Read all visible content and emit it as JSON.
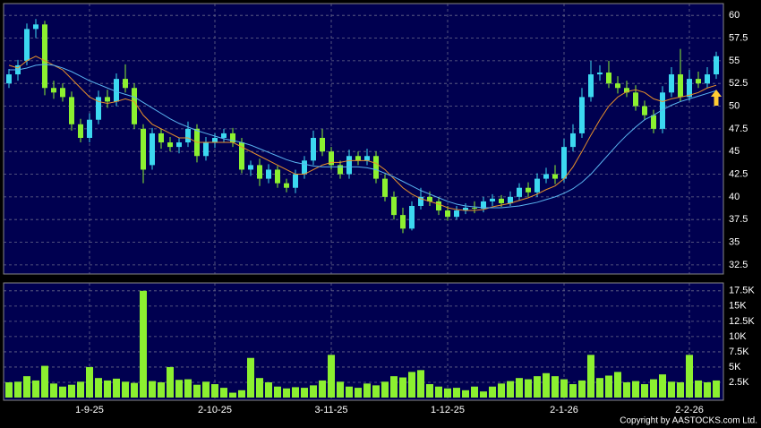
{
  "chart_data": [
    {
      "type": "candlestick",
      "categories": [
        null,
        null,
        null,
        null,
        null,
        null,
        null,
        null,
        null,
        "1-9-25",
        null,
        null,
        null,
        null,
        null,
        null,
        null,
        null,
        null,
        null,
        null,
        null,
        null,
        "2-10-25",
        null,
        null,
        null,
        null,
        null,
        null,
        null,
        null,
        null,
        null,
        null,
        null,
        "3-11-25",
        null,
        null,
        null,
        null,
        null,
        null,
        null,
        null,
        null,
        null,
        null,
        null,
        "1-12-25",
        null,
        null,
        null,
        null,
        null,
        null,
        null,
        null,
        null,
        null,
        null,
        null,
        "2-1-26",
        null,
        null,
        null,
        null,
        null,
        null,
        null,
        null,
        null,
        null,
        null,
        null,
        null,
        "2-2-26",
        null,
        null,
        null
      ],
      "open": [
        52.5,
        53.5,
        55,
        58.5,
        59,
        52,
        52,
        51,
        48,
        46.5,
        48.5,
        51,
        50.5,
        53,
        52,
        47.5,
        43.5,
        47,
        46,
        45.5,
        46,
        47.5,
        44.5,
        46,
        46.5,
        47,
        46,
        43,
        43.5,
        42,
        43,
        41.5,
        41,
        42.5,
        44,
        46.5,
        45,
        43.5,
        42.5,
        44.5,
        44,
        44.5,
        42,
        40,
        38,
        36.5,
        39,
        40,
        39.5,
        38.5,
        37.8,
        38.5,
        38.8,
        38.7,
        39.5,
        39.8,
        39.3,
        40,
        41,
        40.5,
        42,
        42.5,
        42,
        45.5,
        47,
        51,
        53.5,
        53.7,
        52.5,
        52,
        51.5,
        50,
        49,
        47.5,
        51.5,
        53.5,
        51,
        53,
        52.5,
        53.5
      ],
      "high": [
        54.1,
        55.1,
        59.1,
        59.6,
        59.4,
        52.8,
        52.5,
        51.6,
        48.6,
        49.2,
        51.7,
        51.8,
        53.6,
        54.6,
        52.5,
        48,
        47.6,
        47.5,
        46.6,
        46.5,
        48.3,
        48,
        46.6,
        47,
        47.5,
        47.6,
        46.5,
        44,
        44.2,
        43.6,
        43.4,
        42,
        43,
        44.5,
        47.3,
        47.5,
        45.5,
        44,
        45.2,
        45,
        45.3,
        45,
        42.5,
        40.6,
        38.8,
        39.5,
        41,
        40.6,
        40,
        39,
        39,
        39.3,
        39.5,
        40,
        40.3,
        40.2,
        40.6,
        41.5,
        41.6,
        42.6,
        43.2,
        43.5,
        46.4,
        48,
        52,
        55,
        54.5,
        55,
        53.3,
        52.8,
        52.3,
        50.6,
        49.6,
        52.2,
        54.3,
        56.3,
        54,
        53.8,
        54.3,
        56
      ],
      "low": [
        52,
        52.8,
        54.5,
        57.5,
        51.2,
        50.8,
        50.5,
        47.3,
        46,
        46,
        48,
        49.8,
        50,
        51.5,
        47.5,
        41.5,
        43,
        45.3,
        45,
        44.8,
        45.5,
        43.8,
        44,
        45.4,
        46,
        45.5,
        42.6,
        42.3,
        41.2,
        41.5,
        41,
        40.5,
        40.4,
        42,
        43.5,
        44.5,
        43,
        42,
        42,
        43.5,
        43.5,
        41.5,
        39.5,
        37.5,
        36,
        36.3,
        38.6,
        39,
        38,
        37.4,
        37.5,
        38.1,
        38.2,
        38.3,
        39,
        38.9,
        39,
        39.6,
        40,
        40,
        41.5,
        41.4,
        41.6,
        45,
        46.5,
        50.5,
        52.8,
        52,
        51.4,
        51,
        49.5,
        48.5,
        47,
        47,
        51,
        50.5,
        50.6,
        52,
        52,
        53
      ],
      "close": [
        53.5,
        54.5,
        58.5,
        59,
        52,
        51.5,
        51,
        48,
        46.5,
        48.5,
        51,
        50.5,
        53,
        52,
        48,
        43,
        47,
        46,
        45.5,
        46,
        47.5,
        44.5,
        46,
        46.5,
        47,
        46,
        43,
        43.5,
        42,
        43,
        41.5,
        41,
        42.5,
        44,
        46.5,
        45,
        43.5,
        42.5,
        44.5,
        44,
        44.5,
        42,
        40,
        38,
        36.5,
        39,
        40,
        39.5,
        38.5,
        37.8,
        38.5,
        38.8,
        38.7,
        39.5,
        39.8,
        39.3,
        40,
        41,
        40.5,
        42,
        42.5,
        42,
        45.5,
        47,
        51,
        53.5,
        53.7,
        52.5,
        52,
        51.5,
        50,
        49,
        47.5,
        51.5,
        53.5,
        51,
        53,
        52.5,
        53.5,
        55.5
      ],
      "up_color": "#3cd8f0",
      "down_color": "#8cf030",
      "series": [
        {
          "color": "#e8902a",
          "values": [
            54.5,
            54.2,
            55,
            55.5,
            55,
            54.5,
            54,
            53,
            52,
            51,
            50.5,
            50.3,
            50.5,
            50.8,
            50.5,
            49,
            48,
            47.5,
            47,
            46.5,
            46.5,
            46,
            46,
            46,
            46,
            46,
            45.5,
            45,
            44.5,
            44,
            43.5,
            43,
            42.5,
            42.5,
            43,
            43.5,
            43.8,
            43.8,
            44,
            44,
            44,
            43.7,
            43,
            42,
            41,
            40.3,
            39.8,
            39.5,
            39.2,
            38.8,
            38.6,
            38.5,
            38.5,
            38.6,
            38.9,
            39.1,
            39.3,
            39.6,
            39.9,
            40.3,
            40.8,
            41.2,
            42,
            43.3,
            45,
            46.8,
            48.5,
            50,
            51,
            51.6,
            51.8,
            51.5,
            50.8,
            50.5,
            50.8,
            51,
            51.2,
            51.5,
            52,
            52.3
          ]
        },
        {
          "color": "#5ab4f0",
          "values": [
            54,
            54,
            54.2,
            54.5,
            54.6,
            54.5,
            54.2,
            53.8,
            53.3,
            52.8,
            52.4,
            52,
            51.6,
            51.3,
            51,
            50.4,
            49.8,
            49.2,
            48.6,
            48.1,
            47.7,
            47.3,
            47,
            46.7,
            46.4,
            46.2,
            46,
            45.7,
            45.3,
            44.9,
            44.5,
            44.1,
            43.8,
            43.6,
            43.4,
            43.3,
            43.3,
            43.3,
            43.3,
            43.3,
            43.2,
            43,
            42.6,
            42.2,
            41.7,
            41.2,
            40.7,
            40.3,
            39.9,
            39.5,
            39.2,
            39,
            38.9,
            38.8,
            38.8,
            38.8,
            38.9,
            39,
            39.2,
            39.4,
            39.7,
            40,
            40.4,
            40.9,
            41.6,
            42.5,
            43.6,
            44.7,
            45.8,
            46.8,
            47.7,
            48.5,
            49,
            49.6,
            50.1,
            50.5,
            50.8,
            51.1,
            51.4,
            51.7
          ]
        }
      ],
      "ylim": [
        31.5,
        61.3
      ],
      "yticks": [
        32.5,
        35,
        37.5,
        40,
        42.5,
        45,
        47.5,
        50,
        52.5,
        55,
        57.5,
        60
      ],
      "grid": true
    },
    {
      "type": "bar",
      "values": [
        2500,
        2600,
        3500,
        2800,
        5200,
        2300,
        1800,
        2100,
        2600,
        5000,
        3200,
        2800,
        3100,
        2600,
        2400,
        17500,
        2700,
        2500,
        5000,
        2900,
        3000,
        2100,
        2600,
        2200,
        1600,
        800,
        1200,
        6500,
        3200,
        2500,
        1800,
        1500,
        1700,
        1600,
        2000,
        2800,
        7000,
        2600,
        1800,
        1600,
        2300,
        2000,
        2600,
        3500,
        3300,
        4200,
        4500,
        2200,
        1800,
        1500,
        1600,
        1200,
        1800,
        1000,
        1800,
        2300,
        2700,
        3200,
        3000,
        3500,
        4000,
        3500,
        3000,
        2200,
        2800,
        7000,
        3200,
        3600,
        4200,
        2500,
        2700,
        2200,
        3000,
        3800,
        2600,
        2500,
        7000,
        2800,
        2500,
        2800
      ],
      "color": "#8cf030",
      "ylim": [
        0,
        18500
      ],
      "yticks": [
        {
          "value": 2500,
          "label": "2.5K"
        },
        {
          "value": 5000,
          "label": "5K"
        },
        {
          "value": 7500,
          "label": "7.5K"
        },
        {
          "value": 10000,
          "label": "10K"
        },
        {
          "value": 12500,
          "label": "12.5K"
        },
        {
          "value": 15000,
          "label": "15K"
        },
        {
          "value": 17500,
          "label": "17.5K"
        }
      ],
      "grid": true
    }
  ],
  "copyright": "Copyright by AASTOCKS.com Ltd."
}
